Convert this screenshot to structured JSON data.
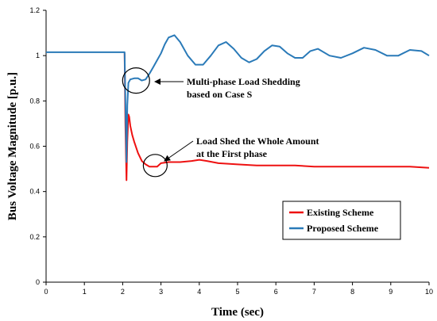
{
  "chart_data": {
    "type": "line",
    "xlabel": "Time (sec)",
    "ylabel": "Bus Voltage Magnitude [p.u.]",
    "xlim": [
      0,
      10
    ],
    "ylim": [
      0,
      1.2
    ],
    "xticks": [
      "0",
      "1",
      "2",
      "3",
      "4",
      "5",
      "6",
      "7",
      "8",
      "9",
      "10"
    ],
    "yticks": [
      "0",
      "0.2",
      "0.4",
      "0.6",
      "0.8",
      "1",
      "1.2"
    ],
    "grid": false,
    "legend_position": "lower-right",
    "series": [
      {
        "name": "Existing Scheme",
        "color": "#ee1111",
        "x": [
          2.05,
          2.07,
          2.1,
          2.12,
          2.15,
          2.17,
          2.2,
          2.25,
          2.3,
          2.4,
          2.5,
          2.6,
          2.7,
          2.8,
          2.9,
          3.0,
          3.2,
          3.5,
          3.8,
          4.0,
          4.2,
          4.5,
          5.0,
          5.5,
          6.0,
          6.5,
          7.0,
          7.5,
          8.0,
          8.5,
          9.0,
          9.5,
          10.0
        ],
        "y": [
          1.01,
          0.7,
          0.45,
          0.62,
          0.74,
          0.73,
          0.69,
          0.65,
          0.62,
          0.57,
          0.535,
          0.52,
          0.51,
          0.51,
          0.51,
          0.525,
          0.53,
          0.53,
          0.535,
          0.54,
          0.535,
          0.525,
          0.52,
          0.515,
          0.515,
          0.515,
          0.51,
          0.51,
          0.51,
          0.51,
          0.51,
          0.51,
          0.505
        ]
      },
      {
        "name": "Proposed Scheme",
        "color": "#2a7ab8",
        "x": [
          0,
          2.0,
          2.05,
          2.07,
          2.1,
          2.12,
          2.15,
          2.2,
          2.3,
          2.4,
          2.5,
          2.6,
          2.7,
          2.8,
          2.9,
          3.0,
          3.1,
          3.2,
          3.35,
          3.5,
          3.7,
          3.9,
          4.1,
          4.3,
          4.5,
          4.7,
          4.9,
          5.1,
          5.3,
          5.5,
          5.7,
          5.9,
          6.1,
          6.3,
          6.5,
          6.7,
          6.9,
          7.1,
          7.4,
          7.7,
          8.0,
          8.3,
          8.6,
          8.9,
          9.2,
          9.5,
          9.8,
          10.0
        ],
        "y": [
          1.015,
          1.015,
          1.015,
          0.8,
          0.53,
          0.78,
          0.88,
          0.895,
          0.9,
          0.9,
          0.89,
          0.895,
          0.92,
          0.95,
          0.98,
          1.01,
          1.05,
          1.08,
          1.09,
          1.06,
          1.0,
          0.96,
          0.96,
          1.0,
          1.045,
          1.06,
          1.03,
          0.99,
          0.97,
          0.985,
          1.02,
          1.045,
          1.04,
          1.01,
          0.99,
          0.99,
          1.02,
          1.03,
          1.0,
          0.99,
          1.01,
          1.035,
          1.025,
          1.0,
          1.0,
          1.025,
          1.02,
          1.0
        ]
      }
    ],
    "annotations": [
      {
        "line1": "Multi-phase Load Shedding",
        "line2": "based on Case S",
        "target": [
          2.35,
          0.89
        ]
      },
      {
        "line1": "Load Shed the Whole Amount",
        "line2": "at the First phase",
        "target": [
          2.85,
          0.515
        ]
      }
    ]
  }
}
